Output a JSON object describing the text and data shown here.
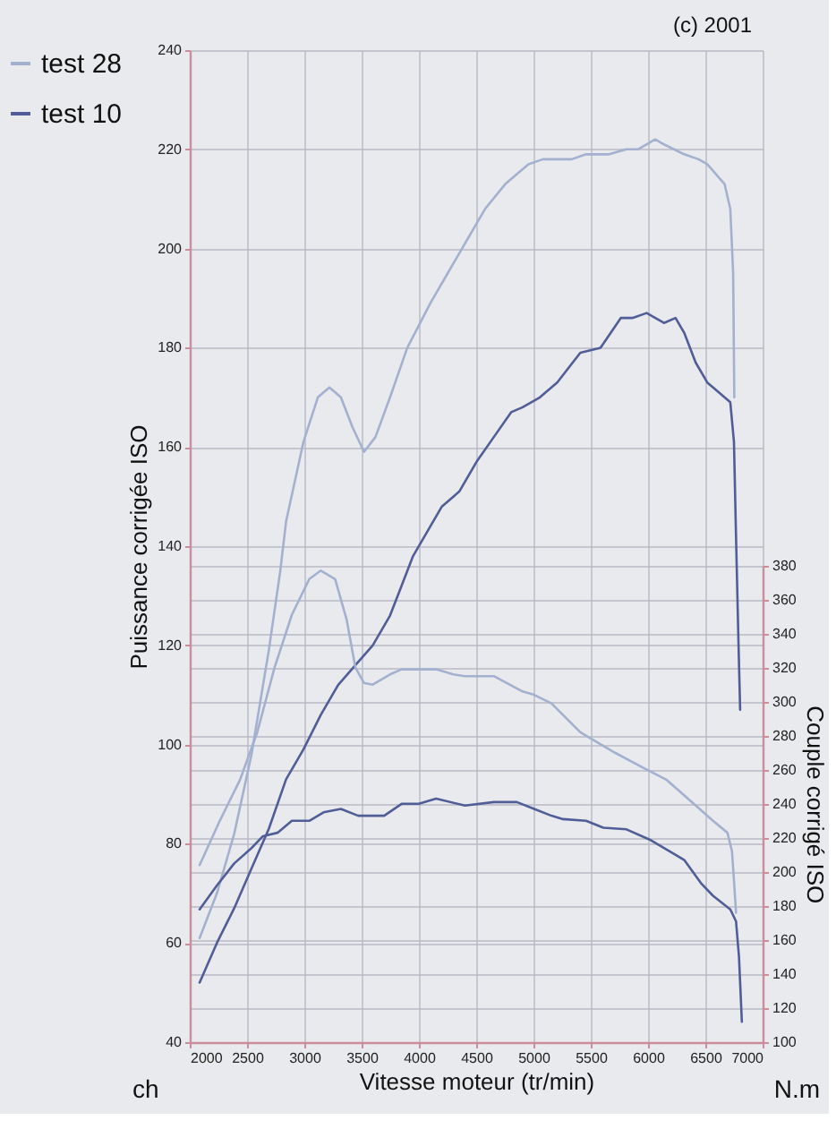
{
  "chart_data": {
    "type": "line",
    "xlabel": "Vitesse moteur (tr/min)",
    "ylabel": "Puissance corrigée ISO",
    "y2label": "Couple corrigé ISO",
    "annotations": [
      "(c) 2001",
      "ch",
      "N.m"
    ],
    "xlim": [
      2000,
      7000
    ],
    "xticks": [
      2000,
      2500,
      3000,
      3500,
      4000,
      4500,
      5000,
      5500,
      6000,
      6500,
      7000
    ],
    "ylim": [
      40,
      240
    ],
    "yticks": [
      40,
      60,
      80,
      100,
      120,
      140,
      160,
      180,
      200,
      220,
      240
    ],
    "y2lim": [
      100,
      380
    ],
    "y2ticks": [
      100,
      120,
      140,
      160,
      180,
      200,
      220,
      240,
      260,
      280,
      300,
      320,
      340,
      360,
      380
    ],
    "grid": true,
    "legend": "top left",
    "series": [
      {
        "name": "test 28",
        "color": "#a3b1cf",
        "x": [
          2086,
          2237,
          2388,
          2539,
          2690,
          2790,
          2841,
          2992,
          3118,
          3219,
          3319,
          3420,
          3521,
          3621,
          3748,
          3899,
          4100,
          4276,
          4427,
          4578,
          4754,
          4956,
          5082,
          5207,
          5334,
          5459,
          5660,
          5811,
          5912,
          6063,
          6139,
          6315,
          6441,
          6517,
          6668,
          6718,
          6743,
          6753
        ],
        "values": [
          61,
          70,
          82,
          98,
          119,
          135,
          145,
          161,
          170,
          172,
          170,
          164,
          159,
          162,
          170,
          180,
          189,
          196,
          202,
          208,
          213,
          217,
          218,
          218,
          218,
          219,
          219,
          220,
          220,
          222,
          221,
          219,
          218,
          217,
          213,
          208,
          195,
          170
        ]
      },
      {
        "name": "test 10",
        "color": "#505d97",
        "x": [
          2086,
          2237,
          2388,
          2539,
          2690,
          2841,
          2992,
          3144,
          3295,
          3446,
          3597,
          3748,
          3849,
          3949,
          4100,
          4201,
          4352,
          4503,
          4654,
          4805,
          4905,
          5056,
          5207,
          5409,
          5585,
          5762,
          5863,
          5988,
          6139,
          6240,
          6316,
          6416,
          6517,
          6618,
          6718,
          6750,
          6770,
          6790,
          6804
        ],
        "values": [
          52,
          60,
          67,
          75,
          83,
          93,
          99,
          106,
          112,
          116,
          120,
          126,
          132,
          138,
          144,
          148,
          151,
          157,
          162,
          167,
          168,
          170,
          173,
          179,
          180,
          186,
          186,
          187,
          185,
          186,
          183,
          177,
          173,
          171,
          169,
          161,
          140,
          120,
          107
        ]
      },
      {
        "color": "#a3b1cf",
        "axis": "y2",
        "x": [
          2086,
          2262,
          2438,
          2589,
          2740,
          2891,
          3043,
          3144,
          3269,
          3370,
          3446,
          3521,
          3597,
          3748,
          3849,
          4150,
          4301,
          4402,
          4654,
          4905,
          5006,
          5157,
          5409,
          5712,
          5963,
          6164,
          6366,
          6567,
          6693,
          6733,
          6755,
          6768
        ],
        "values": [
          204,
          230,
          254,
          282,
          320,
          351,
          372,
          377,
          372,
          348,
          320,
          311,
          310,
          316,
          319,
          319,
          316,
          315,
          315,
          306,
          304,
          299,
          282,
          270,
          261,
          254,
          242,
          230,
          223,
          212,
          190,
          176
        ]
      },
      {
        "color": "#505d97",
        "axis": "y2",
        "x": [
          2086,
          2237,
          2388,
          2539,
          2639,
          2766,
          2891,
          3043,
          3168,
          3319,
          3470,
          3697,
          3849,
          4000,
          4150,
          4402,
          4654,
          4855,
          5006,
          5157,
          5258,
          5459,
          5610,
          5812,
          6013,
          6215,
          6316,
          6467,
          6567,
          6718,
          6768,
          6794,
          6819
        ],
        "values": [
          178,
          192,
          205,
          214,
          221,
          223,
          230,
          230,
          235,
          237,
          233,
          233,
          240,
          240,
          243,
          239,
          241,
          241,
          237,
          233,
          231,
          230,
          226,
          225,
          219,
          211,
          207,
          193,
          186,
          178,
          171,
          150,
          112
        ]
      }
    ]
  }
}
